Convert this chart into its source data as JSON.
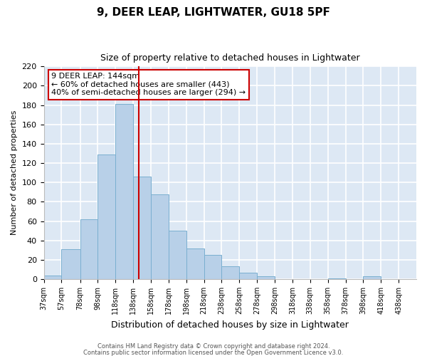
{
  "title": "9, DEER LEAP, LIGHTWATER, GU18 5PF",
  "subtitle": "Size of property relative to detached houses in Lightwater",
  "xlabel": "Distribution of detached houses by size in Lightwater",
  "ylabel": "Number of detached properties",
  "bar_color": "#b8d0e8",
  "bar_edge_color": "#7aafd0",
  "background_color": "#dde8f4",
  "grid_color": "#ffffff",
  "fig_background": "#ffffff",
  "vline_x": 144,
  "vline_color": "#cc0000",
  "bin_edges": [
    37,
    57,
    78,
    98,
    118,
    138,
    158,
    178,
    198,
    218,
    238,
    258,
    278,
    298,
    318,
    338,
    358,
    378,
    398,
    418,
    438,
    458
  ],
  "bin_heights": [
    4,
    31,
    62,
    129,
    181,
    106,
    88,
    50,
    32,
    25,
    13,
    7,
    3,
    0,
    0,
    0,
    1,
    0,
    3,
    0,
    0
  ],
  "tick_labels": [
    "37sqm",
    "57sqm",
    "78sqm",
    "98sqm",
    "118sqm",
    "138sqm",
    "158sqm",
    "178sqm",
    "198sqm",
    "218sqm",
    "238sqm",
    "258sqm",
    "278sqm",
    "298sqm",
    "318sqm",
    "338sqm",
    "358sqm",
    "378sqm",
    "398sqm",
    "418sqm",
    "438sqm"
  ],
  "ylim": [
    0,
    220
  ],
  "yticks": [
    0,
    20,
    40,
    60,
    80,
    100,
    120,
    140,
    160,
    180,
    200,
    220
  ],
  "annotation_title": "9 DEER LEAP: 144sqm",
  "annotation_line1": "← 60% of detached houses are smaller (443)",
  "annotation_line2": "40% of semi-detached houses are larger (294) →",
  "footnote1": "Contains HM Land Registry data © Crown copyright and database right 2024.",
  "footnote2": "Contains public sector information licensed under the Open Government Licence v3.0.",
  "title_fontsize": 11,
  "subtitle_fontsize": 9,
  "xlabel_fontsize": 9,
  "ylabel_fontsize": 8,
  "ytick_fontsize": 8,
  "xtick_fontsize": 7,
  "footnote_fontsize": 6,
  "annot_fontsize": 8
}
